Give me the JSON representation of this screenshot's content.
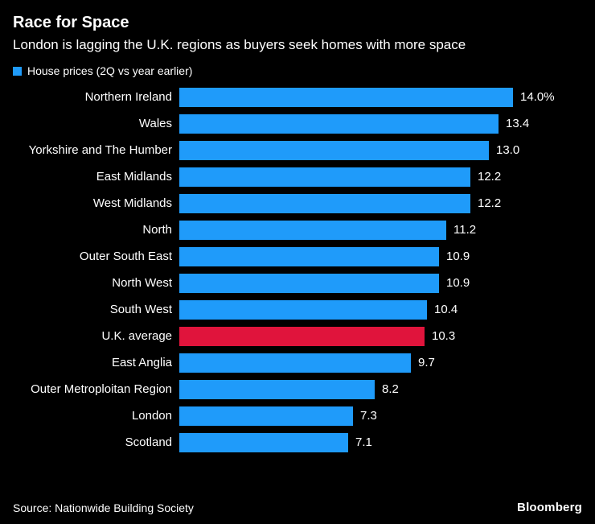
{
  "header": {
    "title": "Race for Space",
    "subtitle": "London is lagging the U.K. regions as buyers seek homes with more space"
  },
  "legend": {
    "label": "House prices (2Q vs year earlier)"
  },
  "colors": {
    "background": "#000000",
    "text": "#ffffff",
    "bar": "#1f9bfa",
    "highlight": "#e0143c"
  },
  "footer": {
    "source": "Source: Nationwide Building Society",
    "brand": "Bloomberg"
  },
  "chart_data": {
    "type": "bar",
    "orientation": "horizontal",
    "title": "Race for Space",
    "subtitle": "London is lagging the U.K. regions as buyers seek homes with more space",
    "legend": "House prices (2Q vs year earlier)",
    "categories": [
      "Northern Ireland",
      "Wales",
      "Yorkshire and The Humber",
      "East Midlands",
      "West Midlands",
      "North",
      "Outer South East",
      "North West",
      "South West",
      "U.K. average",
      "East Anglia",
      "Outer Metroploitan Region",
      "London",
      "Scotland"
    ],
    "values": [
      14.0,
      13.4,
      13.0,
      12.2,
      12.2,
      11.2,
      10.9,
      10.9,
      10.4,
      10.3,
      9.7,
      8.2,
      7.3,
      7.1
    ],
    "value_labels": [
      "14.0%",
      "13.4",
      "13.0",
      "12.2",
      "12.2",
      "11.2",
      "10.9",
      "10.9",
      "10.4",
      "10.3",
      "9.7",
      "8.2",
      "7.3",
      "7.1"
    ],
    "highlight_category": "U.K. average",
    "xmax": 14.0,
    "xlabel": "",
    "ylabel": "",
    "grid": false,
    "legend_position": "top-left",
    "source": "Source: Nationwide Building Society"
  }
}
